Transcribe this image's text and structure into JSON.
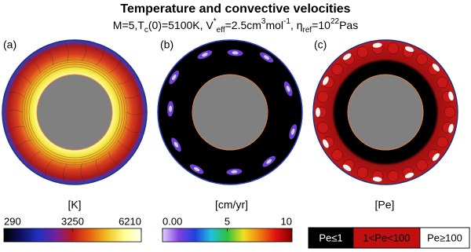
{
  "title": "Temperature and convective velocities",
  "subtitle": [
    {
      "text": "M=5,T",
      "style": "normal"
    },
    {
      "text": "c",
      "style": "sub"
    },
    {
      "text": "(0)=5100K, V",
      "style": "normal"
    },
    {
      "text": "*",
      "style": "sup"
    },
    {
      "text": "eff",
      "style": "sub"
    },
    {
      "text": "=2.5cm",
      "style": "normal"
    },
    {
      "text": "3",
      "style": "sup"
    },
    {
      "text": "mol",
      "style": "normal"
    },
    {
      "text": "-1",
      "style": "sup"
    },
    {
      "text": ", η",
      "style": "normal"
    },
    {
      "text": "ref",
      "style": "sub"
    },
    {
      "text": "=10",
      "style": "normal"
    },
    {
      "text": "22",
      "style": "sup"
    },
    {
      "text": "Pas",
      "style": "normal"
    }
  ],
  "panels": [
    {
      "label": "(a)",
      "unit": "[K]"
    },
    {
      "label": "(b)",
      "unit": "[cm/yr]"
    },
    {
      "label": "(c)",
      "unit": "[Pe]"
    }
  ],
  "colorbars": [
    {
      "range": [
        290,
        6210
      ],
      "ticks": [
        290,
        3250,
        6210
      ],
      "colors": [
        "#000000",
        "#101060",
        "#2030c0",
        "#7020a0",
        "#c01818",
        "#e86010",
        "#f0c020",
        "#ffff90",
        "#fffff0"
      ]
    },
    {
      "range": [
        0,
        10
      ],
      "ticks": [
        {
          "value": 0,
          "label": "0.00"
        },
        5,
        10
      ],
      "colors": [
        "#e0d0ff",
        "#8040e0",
        "#2040e0",
        "#20c0e0",
        "#30c040",
        "#f0e020",
        "#f08010",
        "#e01010",
        "#800000"
      ]
    }
  ],
  "legend": [
    {
      "label": "Pe≤1",
      "color": "#000000",
      "text_color": "#ffffff"
    },
    {
      "label": "1<Pe<100",
      "color": "#c01010",
      "text_color": "#000000"
    },
    {
      "label": "Pe≥100",
      "color": "#ffffff",
      "text_color": "#000000"
    }
  ]
}
